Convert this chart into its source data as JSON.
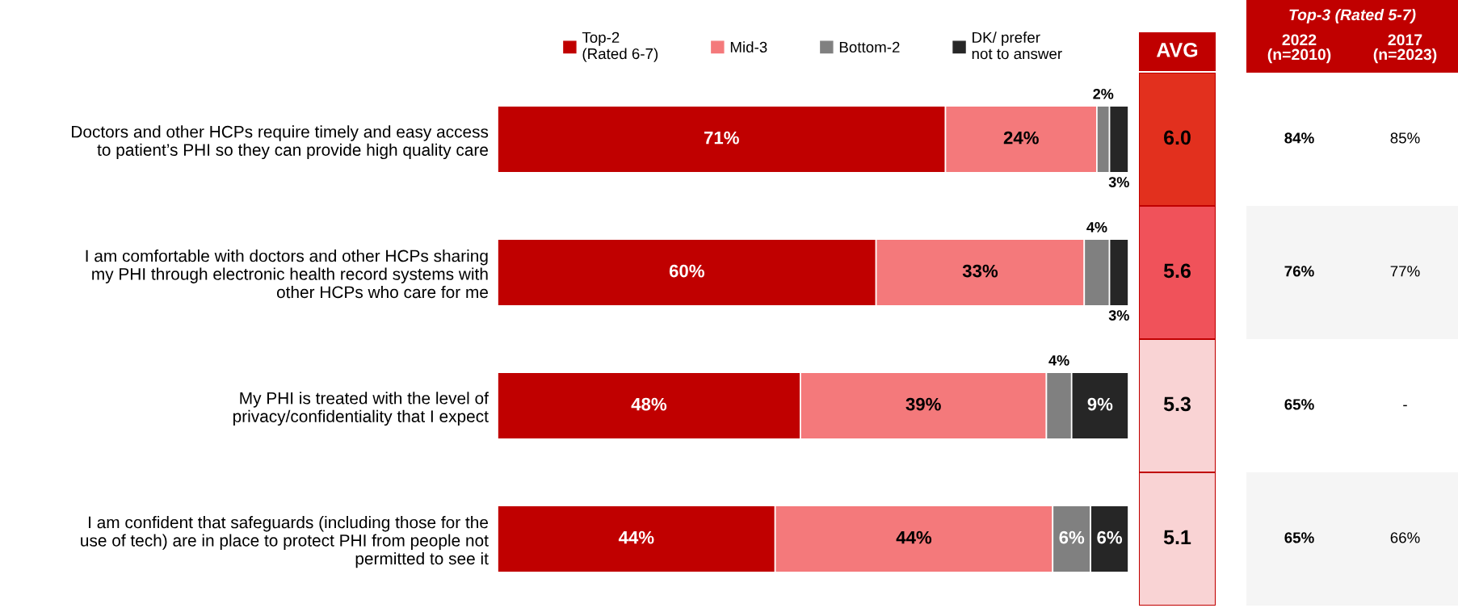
{
  "chart_data": [
    {
      "type": "bar",
      "orientation": "horizontal",
      "stacked": true,
      "xlim": [
        0,
        100
      ],
      "tick_labels": "y",
      "legend": "top",
      "grid": false,
      "categories": [
        "Doctors and other HCPs require timely and easy access\nto patient’s PHI so they can provide high quality care",
        "I am comfortable with doctors and other HCPs sharing\nmy PHI through electronic health record systems with\nother HCPs who care for me",
        "My PHI is treated with the level of\nprivacy/confidentiality that I expect",
        "I am confident that safeguards (including those for the\nuse of tech) are in place to protect PHI from people not\npermitted to see it"
      ],
      "series": [
        {
          "name": "Top-2\n(Rated 6-7)",
          "color": "#c00000",
          "values": [
            71,
            60,
            48,
            44
          ],
          "value_labels": [
            "71%",
            "60%",
            "48%",
            "44%"
          ]
        },
        {
          "name": "Mid-3",
          "color": "#f4797b",
          "values": [
            24,
            33,
            39,
            44
          ],
          "value_labels": [
            "24%",
            "33%",
            "39%",
            "44%"
          ]
        },
        {
          "name": "Bottom-2",
          "color": "#808080",
          "values": [
            2,
            4,
            4,
            6
          ],
          "value_labels": [
            "2%",
            "4%",
            "4%",
            "6%"
          ]
        },
        {
          "name": "DK/ prefer\nnot to answer",
          "color": "#262626",
          "values": [
            3,
            3,
            9,
            6
          ],
          "value_labels": [
            "3%",
            "3%",
            "9%",
            "6%"
          ]
        }
      ]
    },
    {
      "type": "other",
      "title": "AVG",
      "annotations": [
        "6.0",
        "5.6",
        "5.3",
        "5.1"
      ],
      "colors": [
        "#e2301e",
        "#f0525a",
        "#f9d3d4",
        "#f9d3d4"
      ]
    },
    {
      "type": "other",
      "title": "Top-3 (Rated 5-7)",
      "annotations": [
        "2022\n(n=2010)",
        "2017\n(n=2023)",
        "84%",
        "85%",
        "76%",
        "77%",
        "65%",
        "-",
        "65%",
        "66%"
      ],
      "colors": [
        "#ffffff",
        "#f5f5f5",
        "#ffffff",
        "#f5f5f5"
      ]
    }
  ]
}
